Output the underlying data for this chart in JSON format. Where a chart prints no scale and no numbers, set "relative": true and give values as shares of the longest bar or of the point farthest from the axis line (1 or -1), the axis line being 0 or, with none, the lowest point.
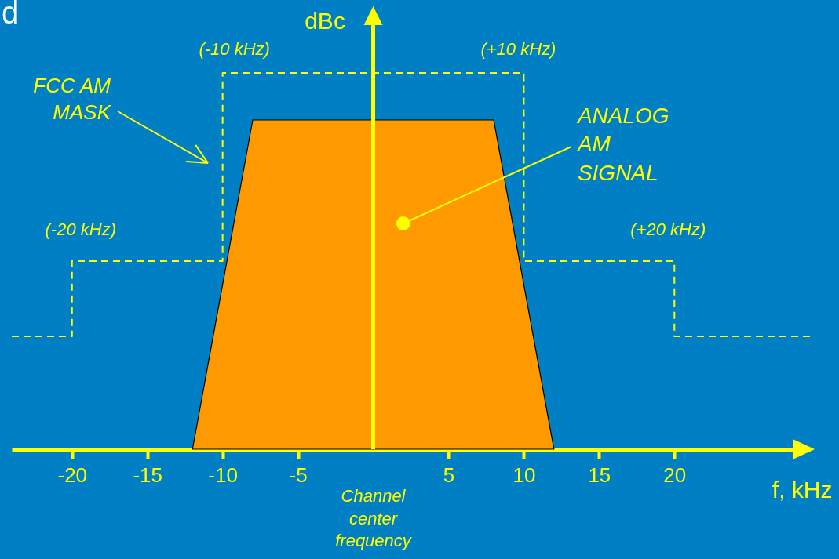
{
  "chart_data": {
    "type": "line",
    "relative": true,
    "title": "d",
    "xlabel": "f, kHz",
    "ylabel": "dBc",
    "xlim": [
      -24,
      29
    ],
    "xticks": [
      -20,
      -15,
      -10,
      -5,
      5,
      10,
      15,
      20
    ],
    "series": [
      {
        "type": "step",
        "color": "#ffff00",
        "line_style": "dashed",
        "x": [
          -24,
          -20,
          -10,
          10,
          20,
          29
        ],
        "values": [
          0.3,
          0.5,
          1,
          0.5,
          0.3,
          0.3
        ]
      },
      {
        "type": "area",
        "color": "#ff9900",
        "x": [
          -12,
          -8,
          8,
          12
        ],
        "values": [
          0,
          0.875,
          0.875,
          0
        ]
      }
    ],
    "annotations": [
      {
        "text": "(-10 kHz)",
        "x": -10,
        "y": 1
      },
      {
        "text": "(+10 kHz)",
        "x": 10,
        "y": 1
      },
      {
        "text": "(-20 kHz)",
        "x": -20,
        "y": 0.5
      },
      {
        "text": "(+20 kHz)",
        "x": 20,
        "y": 0.5
      },
      "FCC AM\nMASK",
      {
        "text": "ANALOG\nAM\nSIGNAL",
        "x": 2,
        "y": 0.6
      }
    ],
    "ref_lines": [
      {
        "axis": "x",
        "value": 0,
        "label": "Channel\ncenter\nfrequency",
        "color": "#ffff00"
      }
    ],
    "grid": false
  }
}
